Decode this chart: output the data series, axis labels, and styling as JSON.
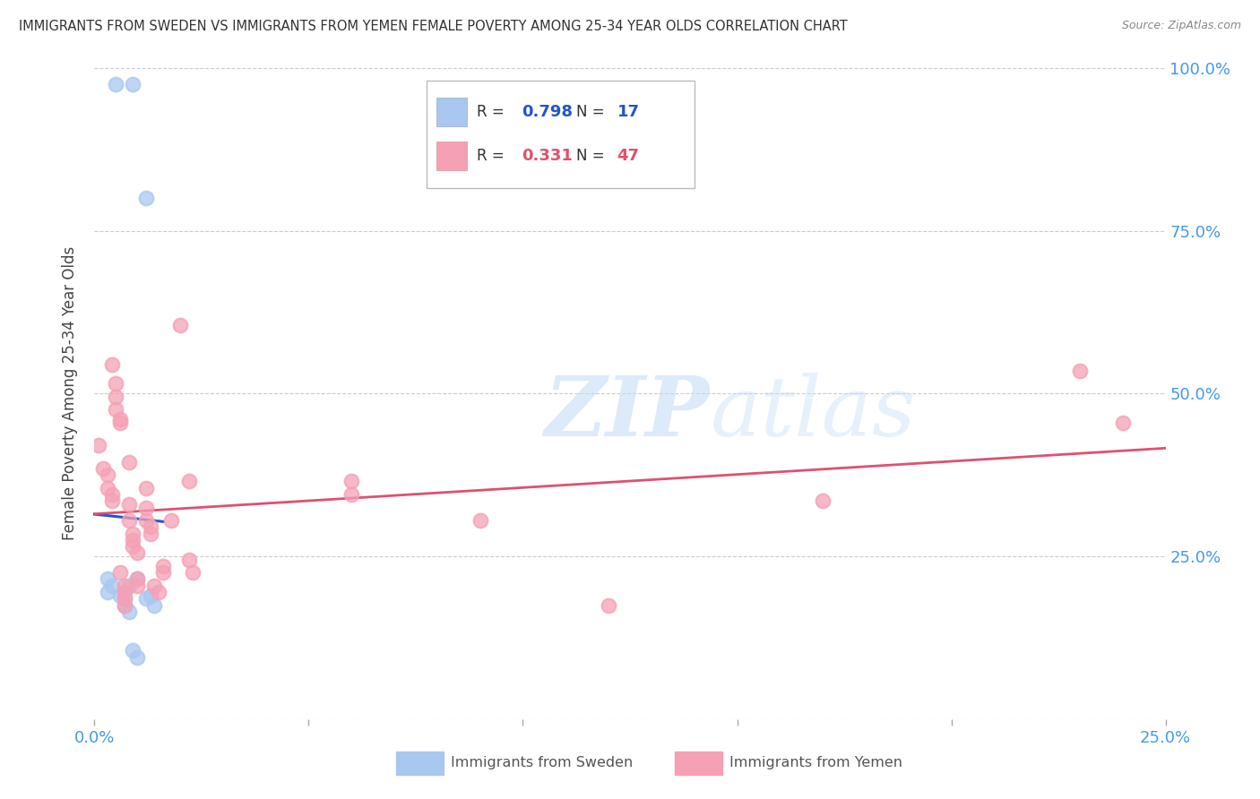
{
  "title": "IMMIGRANTS FROM SWEDEN VS IMMIGRANTS FROM YEMEN FEMALE POVERTY AMONG 25-34 YEAR OLDS CORRELATION CHART",
  "source": "Source: ZipAtlas.com",
  "ylabel": "Female Poverty Among 25-34 Year Olds",
  "xlim": [
    0.0,
    0.25
  ],
  "ylim": [
    0.0,
    1.0
  ],
  "yticks": [
    0.0,
    0.25,
    0.5,
    0.75,
    1.0
  ],
  "right_ytick_labels": [
    "",
    "25.0%",
    "50.0%",
    "75.0%",
    "100.0%"
  ],
  "xticks": [
    0.0,
    0.05,
    0.1,
    0.15,
    0.2,
    0.25
  ],
  "xtick_labels_bottom": [
    "0.0%",
    "",
    "",
    "",
    "",
    "25.0%"
  ],
  "sweden_color": "#a8c8f0",
  "yemen_color": "#f5a0b5",
  "sweden_line_color": "#2255cc",
  "yemen_line_color": "#e05070",
  "tick_label_color": "#4499ee",
  "legend_sweden_r": "0.798",
  "legend_sweden_n": "17",
  "legend_yemen_r": "0.331",
  "legend_yemen_n": "47",
  "sweden_points": [
    [
      0.005,
      0.975
    ],
    [
      0.009,
      0.975
    ],
    [
      0.012,
      0.8
    ],
    [
      0.003,
      0.215
    ],
    [
      0.004,
      0.205
    ],
    [
      0.003,
      0.195
    ],
    [
      0.008,
      0.205
    ],
    [
      0.01,
      0.215
    ],
    [
      0.007,
      0.185
    ],
    [
      0.006,
      0.19
    ],
    [
      0.007,
      0.175
    ],
    [
      0.008,
      0.165
    ],
    [
      0.012,
      0.185
    ],
    [
      0.013,
      0.19
    ],
    [
      0.014,
      0.175
    ],
    [
      0.009,
      0.105
    ],
    [
      0.01,
      0.095
    ]
  ],
  "yemen_points": [
    [
      0.001,
      0.42
    ],
    [
      0.002,
      0.385
    ],
    [
      0.003,
      0.375
    ],
    [
      0.003,
      0.355
    ],
    [
      0.004,
      0.345
    ],
    [
      0.004,
      0.335
    ],
    [
      0.004,
      0.545
    ],
    [
      0.005,
      0.515
    ],
    [
      0.005,
      0.495
    ],
    [
      0.005,
      0.475
    ],
    [
      0.006,
      0.46
    ],
    [
      0.006,
      0.455
    ],
    [
      0.006,
      0.225
    ],
    [
      0.007,
      0.205
    ],
    [
      0.007,
      0.195
    ],
    [
      0.007,
      0.185
    ],
    [
      0.007,
      0.175
    ],
    [
      0.008,
      0.395
    ],
    [
      0.008,
      0.33
    ],
    [
      0.008,
      0.305
    ],
    [
      0.009,
      0.285
    ],
    [
      0.009,
      0.275
    ],
    [
      0.009,
      0.265
    ],
    [
      0.01,
      0.255
    ],
    [
      0.01,
      0.215
    ],
    [
      0.01,
      0.205
    ],
    [
      0.012,
      0.355
    ],
    [
      0.012,
      0.325
    ],
    [
      0.012,
      0.305
    ],
    [
      0.013,
      0.295
    ],
    [
      0.013,
      0.285
    ],
    [
      0.014,
      0.205
    ],
    [
      0.015,
      0.195
    ],
    [
      0.016,
      0.235
    ],
    [
      0.016,
      0.225
    ],
    [
      0.018,
      0.305
    ],
    [
      0.02,
      0.605
    ],
    [
      0.022,
      0.365
    ],
    [
      0.022,
      0.245
    ],
    [
      0.023,
      0.225
    ],
    [
      0.06,
      0.365
    ],
    [
      0.06,
      0.345
    ],
    [
      0.09,
      0.305
    ],
    [
      0.12,
      0.175
    ],
    [
      0.17,
      0.335
    ],
    [
      0.23,
      0.535
    ],
    [
      0.24,
      0.455
    ]
  ],
  "watermark_zip": "ZIP",
  "watermark_atlas": "atlas",
  "background_color": "#ffffff",
  "grid_color": "#cccccc",
  "sweden_label": "Immigrants from Sweden",
  "yemen_label": "Immigrants from Yemen"
}
